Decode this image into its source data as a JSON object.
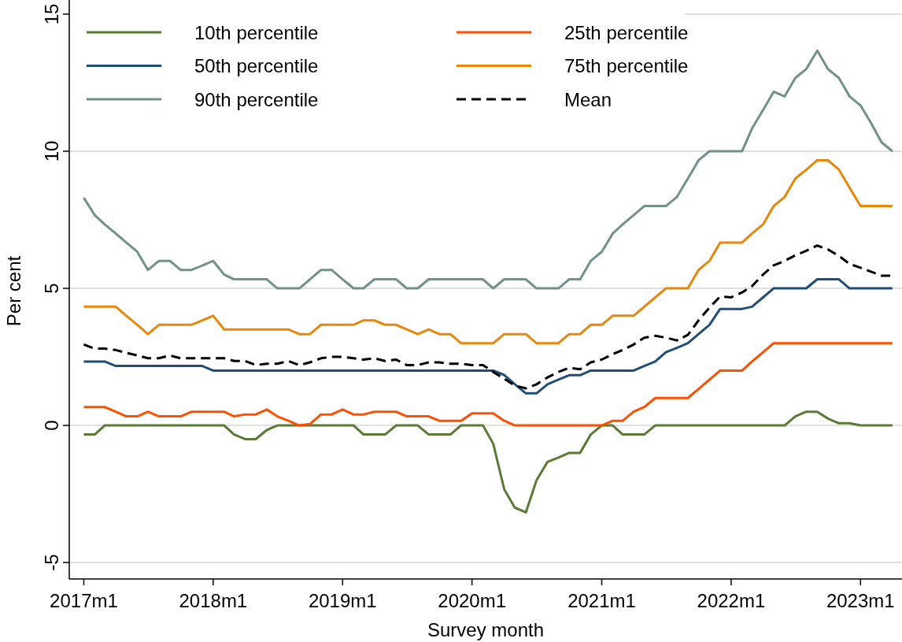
{
  "chart_data": {
    "type": "line",
    "xlabel": "Survey month",
    "ylabel": "Per cent",
    "x": [
      "2017-01",
      "2017-02",
      "2017-03",
      "2017-04",
      "2017-05",
      "2017-06",
      "2017-07",
      "2017-08",
      "2017-09",
      "2017-10",
      "2017-11",
      "2017-12",
      "2018-01",
      "2018-02",
      "2018-03",
      "2018-04",
      "2018-05",
      "2018-06",
      "2018-07",
      "2018-08",
      "2018-09",
      "2018-10",
      "2018-11",
      "2018-12",
      "2019-01",
      "2019-02",
      "2019-03",
      "2019-04",
      "2019-05",
      "2019-06",
      "2019-07",
      "2019-08",
      "2019-09",
      "2019-10",
      "2019-11",
      "2019-12",
      "2020-01",
      "2020-02",
      "2020-03",
      "2020-04",
      "2020-05",
      "2020-06",
      "2020-07",
      "2020-08",
      "2020-09",
      "2020-10",
      "2020-11",
      "2020-12",
      "2021-01",
      "2021-02",
      "2021-03",
      "2021-04",
      "2021-05",
      "2021-06",
      "2021-07",
      "2021-08",
      "2021-09",
      "2021-10",
      "2021-11",
      "2021-12",
      "2022-01",
      "2022-02",
      "2022-03",
      "2022-04",
      "2022-05",
      "2022-06",
      "2022-07",
      "2022-08",
      "2022-09",
      "2022-10",
      "2022-11",
      "2022-12",
      "2023-01",
      "2023-02",
      "2023-03",
      "2023-04"
    ],
    "series": [
      {
        "name": "10th percentile",
        "color": "#5a7a35",
        "values": [
          -0.33,
          -0.33,
          0,
          0,
          0,
          0,
          0,
          0,
          0,
          0,
          0,
          0,
          0,
          0,
          -0.33,
          -0.5,
          -0.5,
          -0.17,
          0,
          0,
          0,
          0,
          0,
          0,
          0,
          0,
          -0.33,
          -0.33,
          -0.33,
          0,
          0,
          0,
          -0.33,
          -0.33,
          -0.33,
          0,
          0,
          0,
          -0.67,
          -2.33,
          -3.0,
          -3.17,
          -2.0,
          -1.33,
          -1.17,
          -1.0,
          -1.0,
          -0.33,
          0,
          0,
          -0.33,
          -0.33,
          -0.33,
          0,
          0,
          0,
          0,
          0,
          0,
          0,
          0,
          0,
          0,
          0,
          0,
          0,
          0.33,
          0.5,
          0.5,
          0.25,
          0.08,
          0.08,
          0,
          0,
          0,
          0
        ]
      },
      {
        "name": "25th percentile",
        "color": "#ff4f00",
        "values": [
          0.67,
          0.67,
          0.67,
          0.5,
          0.33,
          0.33,
          0.5,
          0.33,
          0.33,
          0.33,
          0.5,
          0.5,
          0.5,
          0.5,
          0.33,
          0.4,
          0.4,
          0.58,
          0.33,
          0.17,
          0,
          0.05,
          0.4,
          0.4,
          0.58,
          0.4,
          0.4,
          0.5,
          0.5,
          0.5,
          0.33,
          0.33,
          0.33,
          0.17,
          0.17,
          0.17,
          0.44,
          0.44,
          0.44,
          0.17,
          0,
          0,
          0,
          0,
          0,
          0,
          0,
          0,
          0,
          0.17,
          0.17,
          0.5,
          0.67,
          1.0,
          1.0,
          1.0,
          1.0,
          1.33,
          1.67,
          2.0,
          2.0,
          2.0,
          2.33,
          2.67,
          3.0,
          3.0,
          3.0,
          3.0,
          3.0,
          3.0,
          3.0,
          3.0,
          3.0,
          3.0,
          3.0,
          3.0
        ]
      },
      {
        "name": "50th percentile",
        "color": "#1f4e79",
        "values": [
          2.33,
          2.33,
          2.33,
          2.17,
          2.17,
          2.17,
          2.17,
          2.17,
          2.17,
          2.17,
          2.17,
          2.17,
          2.0,
          2.0,
          2.0,
          2.0,
          2.0,
          2.0,
          2.0,
          2.0,
          2.0,
          2.0,
          2.0,
          2.0,
          2.0,
          2.0,
          2.0,
          2.0,
          2.0,
          2.0,
          2.0,
          2.0,
          2.0,
          2.0,
          2.0,
          2.0,
          2.0,
          2.0,
          2.0,
          1.84,
          1.5,
          1.17,
          1.17,
          1.5,
          1.67,
          1.83,
          1.83,
          2.0,
          2.0,
          2.0,
          2.0,
          2.0,
          2.17,
          2.33,
          2.67,
          2.83,
          3.0,
          3.33,
          3.67,
          4.25,
          4.25,
          4.25,
          4.33,
          4.67,
          5.0,
          5.0,
          5.0,
          5.0,
          5.33,
          5.33,
          5.33,
          5.0,
          5.0,
          5.0,
          5.0,
          5.0
        ]
      },
      {
        "name": "75th percentile",
        "color": "#e8880a",
        "values": [
          4.33,
          4.33,
          4.33,
          4.33,
          4.0,
          3.67,
          3.33,
          3.67,
          3.67,
          3.67,
          3.67,
          3.83,
          4.0,
          3.5,
          3.5,
          3.5,
          3.5,
          3.5,
          3.5,
          3.5,
          3.33,
          3.33,
          3.67,
          3.67,
          3.67,
          3.67,
          3.83,
          3.83,
          3.67,
          3.67,
          3.5,
          3.33,
          3.5,
          3.33,
          3.33,
          3.0,
          3.0,
          3.0,
          3.0,
          3.33,
          3.33,
          3.33,
          3.0,
          3.0,
          3.0,
          3.33,
          3.33,
          3.67,
          3.67,
          4.0,
          4.0,
          4.0,
          4.33,
          4.67,
          5.0,
          5.0,
          5.0,
          5.67,
          6.0,
          6.67,
          6.67,
          6.67,
          7.0,
          7.33,
          8.0,
          8.33,
          9.0,
          9.33,
          9.67,
          9.67,
          9.33,
          8.67,
          8.0,
          8.0,
          8.0,
          8.0
        ]
      },
      {
        "name": "90th percentile",
        "color": "#72918a",
        "values": [
          8.3,
          7.67,
          7.33,
          7.0,
          6.67,
          6.33,
          5.67,
          6.0,
          6.0,
          5.67,
          5.67,
          5.83,
          6.0,
          5.5,
          5.33,
          5.33,
          5.33,
          5.33,
          5.0,
          5.0,
          5.0,
          5.33,
          5.67,
          5.67,
          5.33,
          5.0,
          5.0,
          5.33,
          5.33,
          5.33,
          5.0,
          5.0,
          5.33,
          5.33,
          5.33,
          5.33,
          5.33,
          5.33,
          5.0,
          5.33,
          5.33,
          5.33,
          5.0,
          5.0,
          5.0,
          5.33,
          5.33,
          6.0,
          6.33,
          7.0,
          7.33,
          7.67,
          8.0,
          8.0,
          8.0,
          8.33,
          9.0,
          9.67,
          10.0,
          10.0,
          10.0,
          10.0,
          10.83,
          11.5,
          12.17,
          12.0,
          12.67,
          13.0,
          13.67,
          13.0,
          12.67,
          12.0,
          11.67,
          11.0,
          10.33,
          10.0
        ]
      },
      {
        "name": "Mean",
        "color": "#000000",
        "line_style": "dashed",
        "values": [
          2.95,
          2.8,
          2.8,
          2.75,
          2.65,
          2.55,
          2.45,
          2.45,
          2.55,
          2.45,
          2.45,
          2.45,
          2.45,
          2.45,
          2.35,
          2.35,
          2.2,
          2.25,
          2.25,
          2.35,
          2.2,
          2.3,
          2.45,
          2.5,
          2.5,
          2.45,
          2.4,
          2.45,
          2.35,
          2.4,
          2.2,
          2.2,
          2.3,
          2.3,
          2.25,
          2.25,
          2.2,
          2.2,
          1.95,
          1.7,
          1.45,
          1.35,
          1.5,
          1.75,
          1.95,
          2.1,
          2.05,
          2.3,
          2.4,
          2.6,
          2.75,
          2.95,
          3.2,
          3.27,
          3.2,
          3.1,
          3.3,
          3.83,
          4.3,
          4.7,
          4.67,
          4.85,
          5.08,
          5.5,
          5.84,
          6.0,
          6.2,
          6.37,
          6.56,
          6.42,
          6.18,
          5.89,
          5.75,
          5.6,
          5.46,
          5.46
        ]
      }
    ],
    "xlim": [
      "2016-11-21",
      "2023-04-28"
    ],
    "xticks": [
      {
        "value": "2017-01",
        "label": "2017m1"
      },
      {
        "value": "2018-01",
        "label": "2018m1"
      },
      {
        "value": "2019-01",
        "label": "2019m1"
      },
      {
        "value": "2020-01",
        "label": "2020m1"
      },
      {
        "value": "2021-01",
        "label": "2021m1"
      },
      {
        "value": "2022-01",
        "label": "2022m1"
      },
      {
        "value": "2023-01",
        "label": "2023m1"
      }
    ],
    "ylim": [
      -5.6,
      15.4
    ],
    "yticks": [
      -5,
      0,
      5,
      10,
      15
    ],
    "grid": "y",
    "legend": "top left"
  }
}
